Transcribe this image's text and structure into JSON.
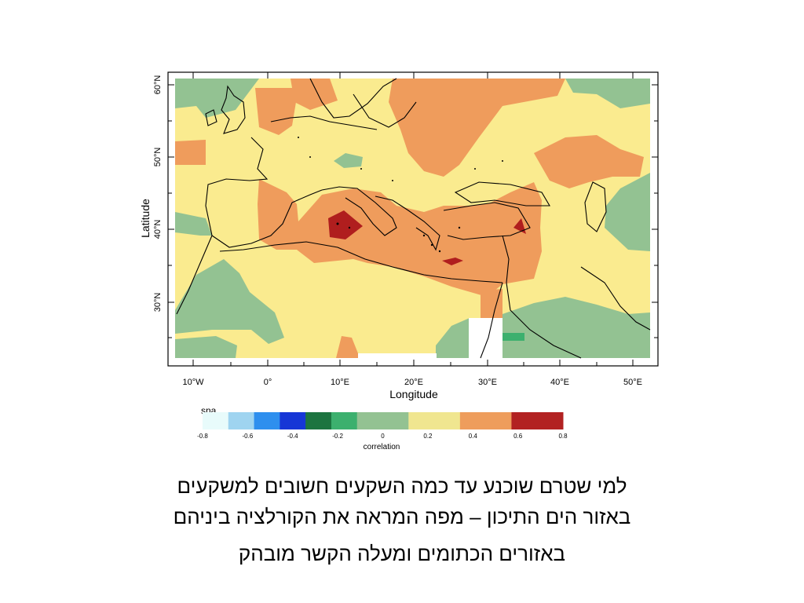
{
  "figure": {
    "ylabel": "Latitude",
    "xlabel": "Longitude",
    "lat_ticks": [
      "60°N",
      "50°N",
      "40°N",
      "30°N"
    ],
    "lon_ticks": [
      "10°W",
      "0°",
      "10°E",
      "20°E",
      "30°E",
      "40°E",
      "50°E"
    ],
    "corner_text": "sna"
  },
  "colorbar": {
    "title": "correlation",
    "tick_labels": [
      "-0.8",
      "-0.6",
      "-0.4",
      "-0.2",
      "0",
      "0.2",
      "0.4",
      "0.6",
      "0.8"
    ],
    "colors": [
      "#e8fbfb",
      "#9fd4f0",
      "#2e8fee",
      "#1636d6",
      "#1c7440",
      "#3cb06e",
      "#93c292",
      "#93c292",
      "#f0e690",
      "#f0e690",
      "#ee9d5c",
      "#ee9d5c",
      "#b22222",
      "#b22222"
    ]
  },
  "map_colors": {
    "green": "#93c292",
    "yellow": "#faeb8f",
    "orange": "#ef9c5c",
    "red": "#b01e1e",
    "bright_green": "#3cb06e",
    "white": "#ffffff"
  },
  "caption": {
    "line1": "למי שטרם שוכנע עד כמה השקעים חשובים למשקעים",
    "line2": "באזור הים התיכון – מפה המראה את הקורלציה ביניהם",
    "line3": "באזורים הכתומים ומעלה הקשר מובהק"
  }
}
